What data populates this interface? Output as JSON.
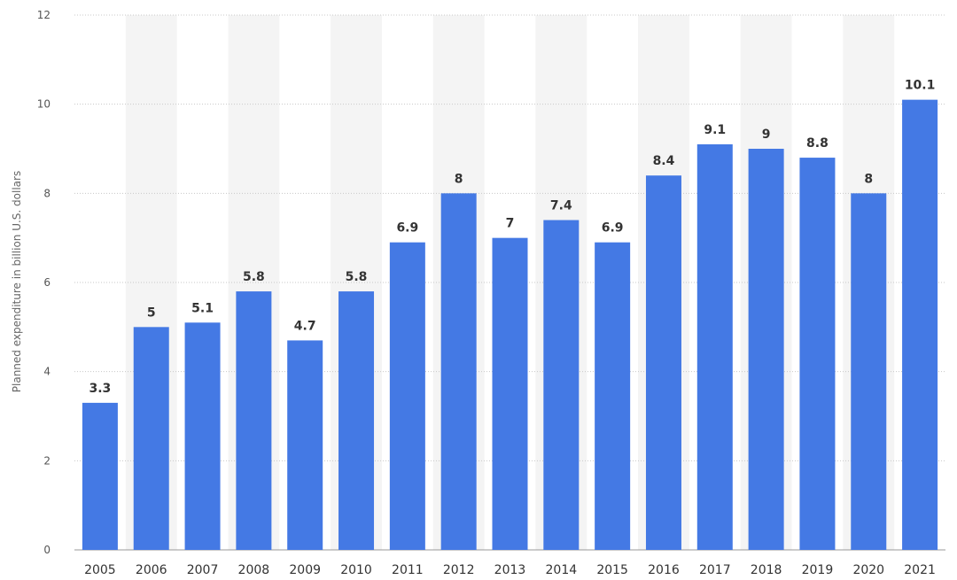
{
  "chart_data": {
    "type": "bar",
    "categories": [
      "2005",
      "2006",
      "2007",
      "2008",
      "2009",
      "2010",
      "2011",
      "2012",
      "2013",
      "2014",
      "2015",
      "2016",
      "2017",
      "2018",
      "2019",
      "2020",
      "2021"
    ],
    "values": [
      3.3,
      5,
      5.1,
      5.8,
      4.7,
      5.8,
      6.9,
      8,
      7,
      7.4,
      6.9,
      8.4,
      9.1,
      9,
      8.8,
      8,
      10.1
    ],
    "data_labels": [
      "3.3",
      "5",
      "5.1",
      "5.8",
      "4.7",
      "5.8",
      "6.9",
      "8",
      "7",
      "7.4",
      "6.9",
      "8.4",
      "9.1",
      "9",
      "8.8",
      "8",
      "10.1"
    ],
    "ylabel": "Planned expenditure in billion U.S. dollars",
    "xlabel": "",
    "ylim": [
      0,
      12
    ],
    "yticks": [
      "0",
      "2",
      "4",
      "6",
      "8",
      "10",
      "12"
    ],
    "grid": true,
    "legend": "none",
    "colors": {
      "bar": "#4479e4",
      "band": "#f4f4f4",
      "grid": "#c8c8c8"
    }
  }
}
